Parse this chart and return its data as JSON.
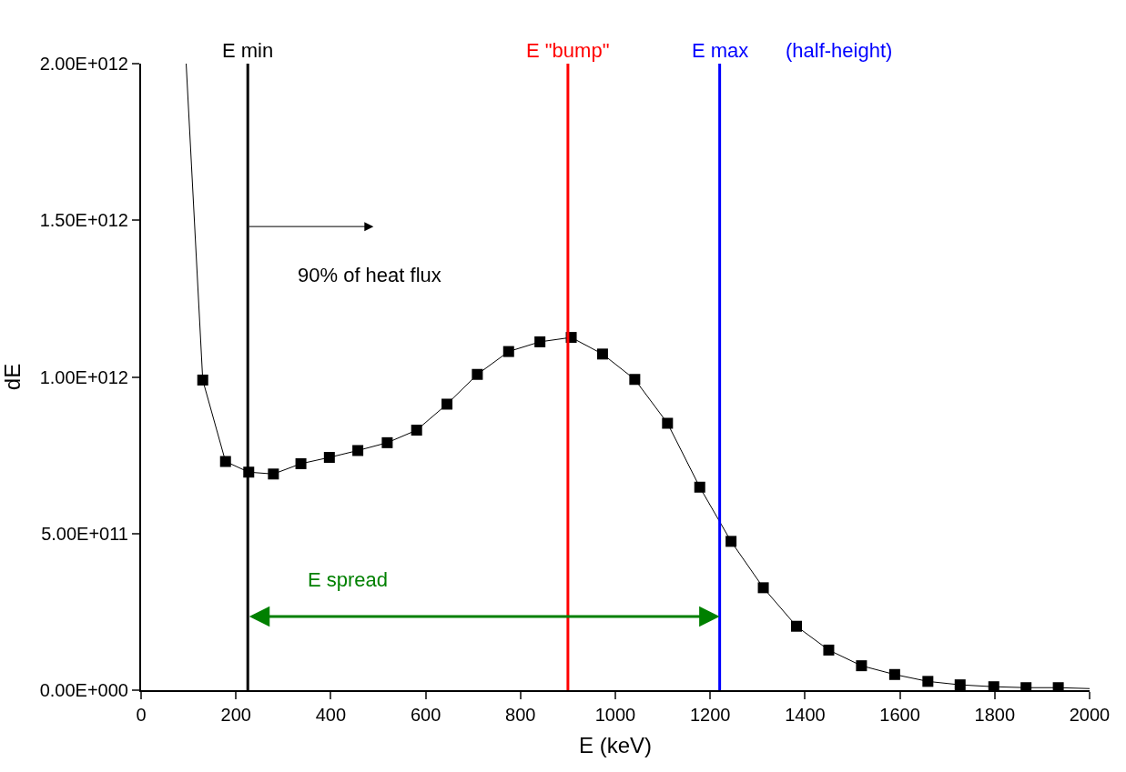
{
  "chart_data": {
    "type": "line",
    "xlabel": "E (keV)",
    "ylabel": "dE",
    "xlim": [
      0,
      2000
    ],
    "xticks": [
      0,
      200,
      400,
      600,
      800,
      1000,
      1200,
      1400,
      1600,
      1800,
      2000
    ],
    "ylim": [
      0,
      2000000000000.0
    ],
    "yticks": [
      {
        "value": 0,
        "label": "0.00E+000"
      },
      {
        "value": 500000000000.0,
        "label": "5.00E+011"
      },
      {
        "value": 1000000000000.0,
        "label": "1.00E+012"
      },
      {
        "value": 1500000000000.0,
        "label": "1.50E+012"
      },
      {
        "value": 2000000000000.0,
        "label": "2.00E+012"
      }
    ],
    "series": [
      {
        "color": "#000000",
        "marker": "none",
        "x": [
          95,
          130,
          178,
          227,
          279,
          337,
          397,
          457,
          519,
          581,
          645,
          709,
          775,
          841,
          907,
          973,
          1041,
          1110,
          1178,
          1244,
          1312,
          1382,
          1450,
          1519,
          1589,
          1659,
          1727,
          1798,
          1866,
          1934,
          2000
        ],
        "values": [
          2000000000000.0,
          990000000000.0,
          730000000000.0,
          696000000000.0,
          690000000000.0,
          723000000000.0,
          743000000000.0,
          765000000000.0,
          790000000000.0,
          830000000000.0,
          913000000000.0,
          1008000000000.0,
          1081000000000.0,
          1112000000000.0,
          1126000000000.0,
          1073000000000.0,
          992000000000.0,
          852000000000.0,
          648000000000.0,
          475000000000.0,
          327000000000.0,
          204000000000.0,
          128000000000.0,
          78000000000.0,
          50000000000.0,
          28000000000.0,
          17000000000.0,
          11000000000.0,
          8000000000.0,
          8000000000.0,
          5000000000.0
        ]
      },
      {
        "type": "scatter",
        "color": "#000000",
        "marker": "square",
        "x": [
          130,
          178,
          227,
          279,
          337,
          397,
          457,
          519,
          581,
          645,
          709,
          775,
          841,
          907,
          973,
          1041,
          1110,
          1178,
          1244,
          1312,
          1382,
          1450,
          1519,
          1589,
          1659,
          1727,
          1798,
          1866,
          1934
        ],
        "values": [
          990000000000.0,
          730000000000.0,
          696000000000.0,
          690000000000.0,
          723000000000.0,
          743000000000.0,
          765000000000.0,
          790000000000.0,
          830000000000.0,
          913000000000.0,
          1008000000000.0,
          1081000000000.0,
          1112000000000.0,
          1126000000000.0,
          1073000000000.0,
          992000000000.0,
          852000000000.0,
          648000000000.0,
          475000000000.0,
          327000000000.0,
          204000000000.0,
          128000000000.0,
          78000000000.0,
          50000000000.0,
          28000000000.0,
          17000000000.0,
          11000000000.0,
          8000000000.0,
          8000000000.0
        ]
      }
    ],
    "ref_lines": [
      {
        "axis": "x",
        "value": 225,
        "label": "E min",
        "color": "#000000"
      },
      {
        "axis": "x",
        "value": 900,
        "label": "E \"bump\"",
        "color": "#ff0000"
      },
      {
        "axis": "x",
        "value": 1220,
        "label": "E max",
        "color": "#0000ff"
      }
    ],
    "annotations": [
      "(half-height)",
      "90% of heat flux",
      "E spread"
    ]
  }
}
